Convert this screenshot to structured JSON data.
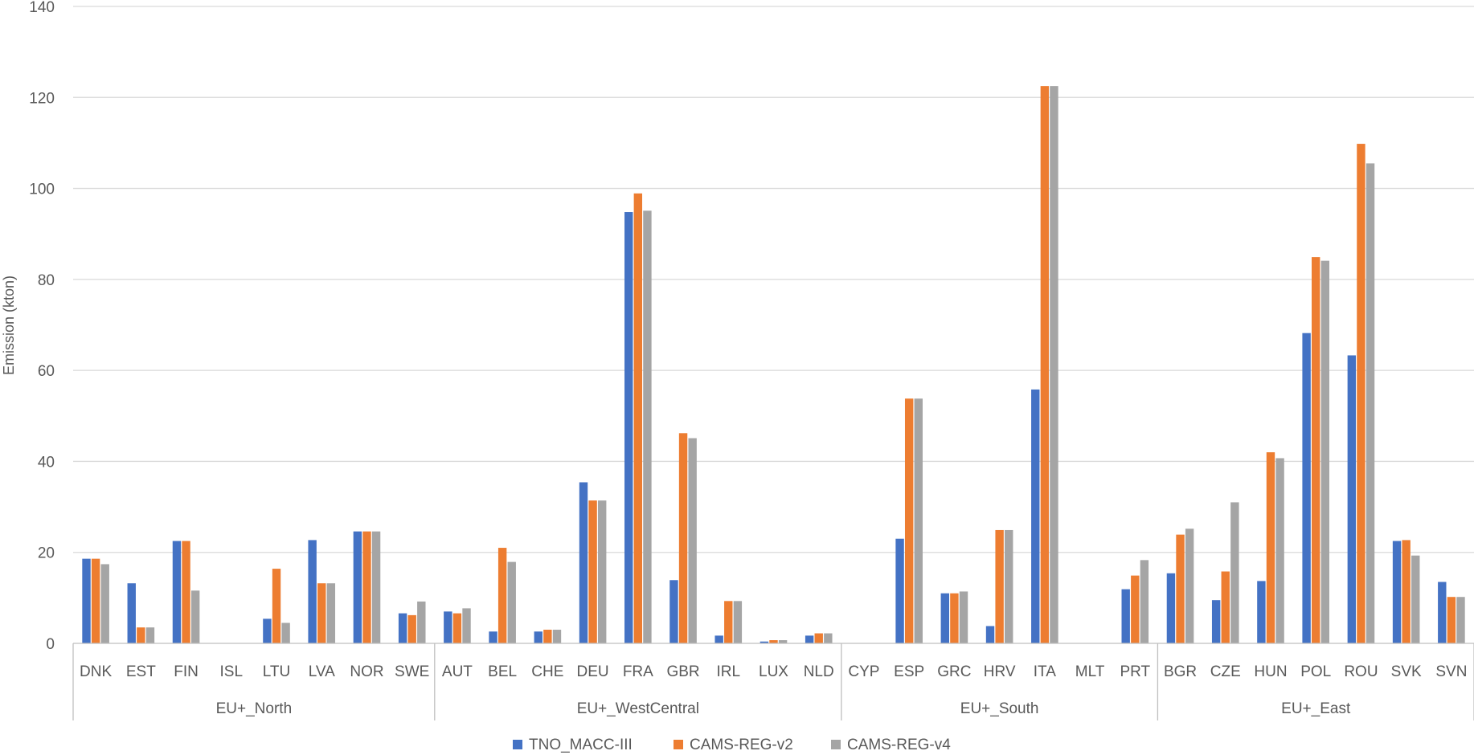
{
  "chart_data": {
    "type": "bar",
    "ylabel": "Emission (kton)",
    "xlabel": "",
    "ylim": [
      0,
      140
    ],
    "yticks": [
      0,
      20,
      40,
      60,
      80,
      100,
      120,
      140
    ],
    "grid": true,
    "legend_position": "bottom",
    "groups": [
      {
        "name": "EU+_North",
        "categories": [
          "DNK",
          "EST",
          "FIN",
          "ISL",
          "LTU",
          "LVA",
          "NOR",
          "SWE"
        ]
      },
      {
        "name": "EU+_WestCentral",
        "categories": [
          "AUT",
          "BEL",
          "CHE",
          "DEU",
          "FRA",
          "GBR",
          "IRL",
          "LUX",
          "NLD"
        ]
      },
      {
        "name": "EU+_South",
        "categories": [
          "CYP",
          "ESP",
          "GRC",
          "HRV",
          "ITA",
          "MLT",
          "PRT"
        ]
      },
      {
        "name": "EU+_East",
        "categories": [
          "BGR",
          "CZE",
          "HUN",
          "POL",
          "ROU",
          "SVK",
          "SVN"
        ]
      }
    ],
    "categories": [
      "DNK",
      "EST",
      "FIN",
      "ISL",
      "LTU",
      "LVA",
      "NOR",
      "SWE",
      "AUT",
      "BEL",
      "CHE",
      "DEU",
      "FRA",
      "GBR",
      "IRL",
      "LUX",
      "NLD",
      "CYP",
      "ESP",
      "GRC",
      "HRV",
      "ITA",
      "MLT",
      "PRT",
      "BGR",
      "CZE",
      "HUN",
      "POL",
      "ROU",
      "SVK",
      "SVN"
    ],
    "series": [
      {
        "name": "TNO_MACC-III",
        "color": "#4472c4",
        "values": [
          18.6,
          13.2,
          22.5,
          0,
          5.4,
          22.7,
          24.6,
          6.6,
          7.0,
          2.6,
          2.6,
          35.4,
          94.8,
          13.9,
          1.7,
          0.4,
          1.7,
          0,
          23.0,
          11.0,
          3.8,
          55.8,
          0,
          11.9,
          15.4,
          9.5,
          13.7,
          68.2,
          63.3,
          22.5,
          13.5
        ]
      },
      {
        "name": "CAMS-REG-v2",
        "color": "#ed7d31",
        "values": [
          18.6,
          3.5,
          22.5,
          0,
          16.4,
          13.2,
          24.6,
          6.2,
          6.6,
          21.0,
          3.0,
          31.4,
          98.9,
          46.2,
          9.3,
          0.7,
          2.2,
          0,
          53.8,
          11.0,
          24.9,
          122.5,
          0,
          14.9,
          23.9,
          15.8,
          42.0,
          84.9,
          109.8,
          22.7,
          10.2
        ]
      },
      {
        "name": "CAMS-REG-v4",
        "color": "#a5a5a5",
        "values": [
          17.4,
          3.5,
          11.6,
          0,
          4.5,
          13.2,
          24.6,
          9.2,
          7.7,
          17.9,
          3.0,
          31.4,
          95.1,
          45.1,
          9.3,
          0.7,
          2.2,
          0,
          53.8,
          11.4,
          24.9,
          122.5,
          0,
          18.3,
          25.2,
          31.0,
          40.7,
          84.1,
          105.5,
          19.3,
          10.2
        ]
      }
    ]
  }
}
